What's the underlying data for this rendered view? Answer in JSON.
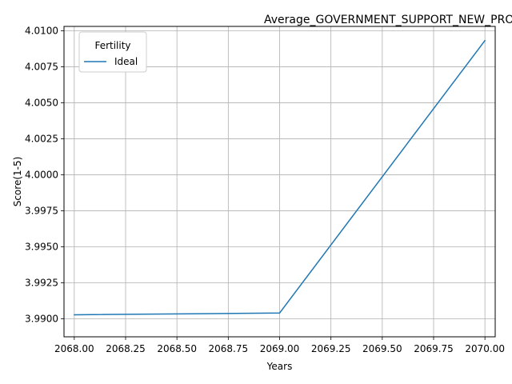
{
  "chart_data": {
    "type": "line",
    "title": "Average_GOVERNMENT_SUPPORT_NEW_PRODUCTS_Black_Above_Average",
    "xlabel": "Years",
    "ylabel": "Score(1-5)",
    "xlim": [
      2067.95,
      2070.05
    ],
    "ylim": [
      3.98875,
      4.0103
    ],
    "xticks": [
      "2068.00",
      "2068.25",
      "2068.50",
      "2068.75",
      "2069.00",
      "2069.25",
      "2069.50",
      "2069.75",
      "2070.00"
    ],
    "xtick_values": [
      2068.0,
      2068.25,
      2068.5,
      2068.75,
      2069.0,
      2069.25,
      2069.5,
      2069.75,
      2070.0
    ],
    "yticks": [
      "3.9900",
      "3.9925",
      "3.9950",
      "3.9975",
      "4.0000",
      "4.0025",
      "4.0050",
      "4.0075",
      "4.0100"
    ],
    "ytick_values": [
      3.99,
      3.9925,
      3.995,
      3.9975,
      4.0,
      4.0025,
      4.005,
      4.0075,
      4.01
    ],
    "grid": true,
    "legend": {
      "title": "Fertility",
      "placement": "top-left"
    },
    "series": [
      {
        "name": "Ideal",
        "color": "#1f77b4",
        "x": [
          2068,
          2069,
          2070
        ],
        "y": [
          3.99028,
          3.9904,
          4.00932
        ]
      }
    ]
  }
}
